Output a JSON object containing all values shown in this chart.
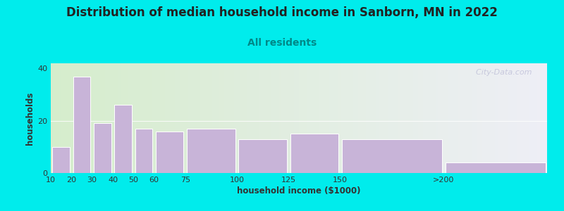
{
  "title": "Distribution of median household income in Sanborn, MN in 2022",
  "subtitle": "All residents",
  "xlabel": "household income ($1000)",
  "ylabel": "households",
  "bar_left_edges": [
    10,
    20,
    30,
    40,
    50,
    60,
    75,
    100,
    125,
    150,
    200
  ],
  "bar_widths": [
    10,
    10,
    10,
    10,
    10,
    15,
    25,
    25,
    25,
    50,
    50
  ],
  "bar_values": [
    10,
    37,
    19,
    26,
    17,
    16,
    17,
    13,
    15,
    13,
    4
  ],
  "bar_color": "#c8b4d8",
  "bar_edgecolor": "#ffffff",
  "ylim": [
    0,
    42
  ],
  "xlim": [
    10,
    250
  ],
  "yticks": [
    0,
    20,
    40
  ],
  "xtick_positions": [
    10,
    20,
    30,
    40,
    50,
    60,
    75,
    100,
    125,
    150,
    200
  ],
  "xtick_labels": [
    "10",
    "20",
    "30",
    "40",
    "50",
    "60",
    "75",
    "100",
    "125",
    "150",
    ">200"
  ],
  "background_color": "#00ecec",
  "plot_bg_gradient_left": "#d5edcc",
  "plot_bg_gradient_right": "#eeeef6",
  "title_fontsize": 12,
  "subtitle_fontsize": 10,
  "axis_label_fontsize": 8.5,
  "tick_fontsize": 8,
  "watermark": "  City-Data.com",
  "title_color": "#222222",
  "subtitle_color": "#008888",
  "axis_label_color": "#333333"
}
